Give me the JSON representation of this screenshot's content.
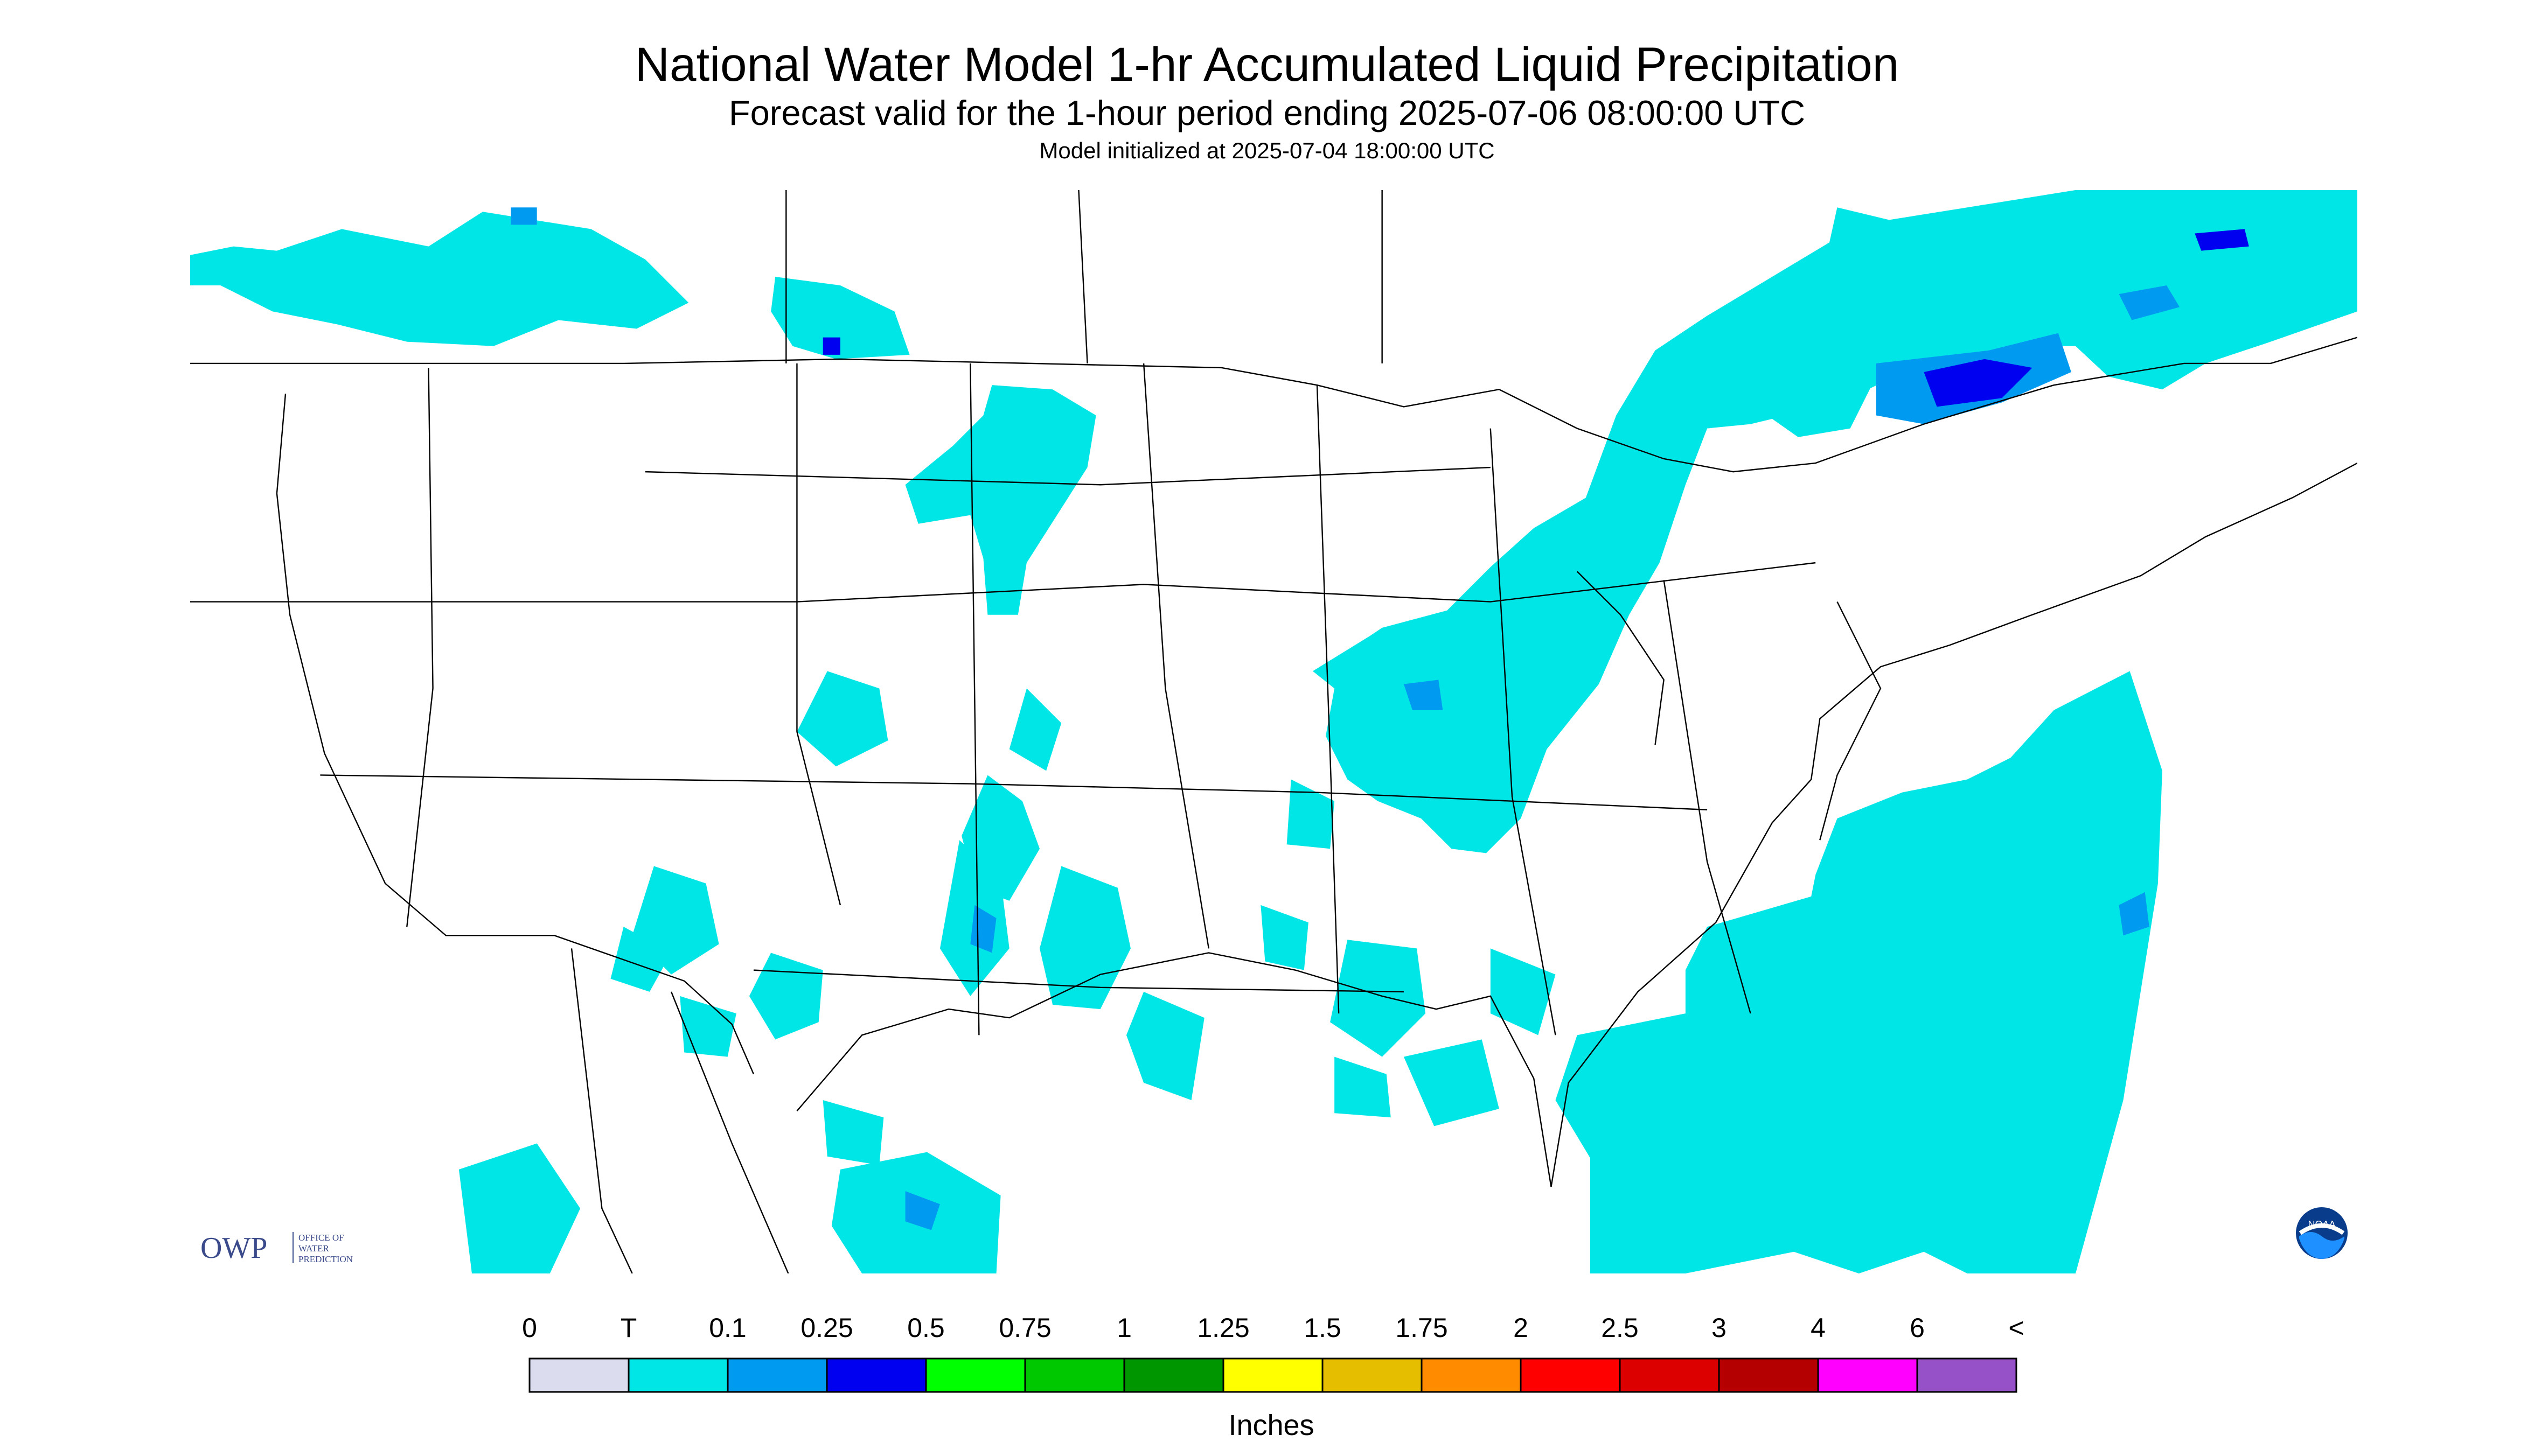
{
  "header": {
    "title": "National Water Model 1-hr Accumulated Liquid Precipitation",
    "subtitle": "Forecast valid for the 1-hour period ending 2025-07-06 08:00:00 UTC",
    "init_line": "Model initialized at 2025-07-04 18:00:00 UTC"
  },
  "legend": {
    "labels": [
      "0",
      "T",
      "0.1",
      "0.25",
      "0.5",
      "0.75",
      "1",
      "1.25",
      "1.5",
      "1.75",
      "2",
      "2.5",
      "3",
      "4",
      "6",
      "<"
    ],
    "colors": [
      "#dcdcef",
      "#00e6e6",
      "#009bf0",
      "#0000f0",
      "#00ff00",
      "#00c800",
      "#009600",
      "#ffff00",
      "#e6be00",
      "#ff8c00",
      "#ff0000",
      "#dc0000",
      "#b40000",
      "#ff00ff",
      "#9650c8"
    ],
    "unit": "Inches"
  },
  "logos": {
    "owp_mark": "OWP",
    "owp_text": [
      "OFFICE OF",
      "WATER",
      "PREDICTION"
    ],
    "noaa_text": "NOAA"
  },
  "map": {
    "background": "#dcdcef",
    "precip_light": "#00e6e6",
    "precip_medium": "#009bf0",
    "precip_heavy": "#0000f0",
    "outline_color": "#000000"
  }
}
